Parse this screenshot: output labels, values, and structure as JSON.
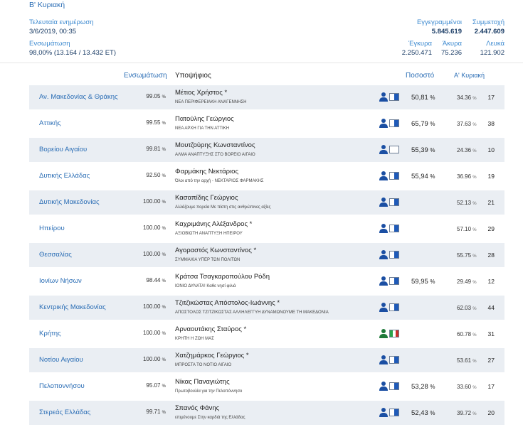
{
  "tab": "Β' Κυριακή",
  "header": {
    "last_update_label": "Τελευταία ενημέρωση",
    "last_update_value": "3/6/2019, 00:35",
    "integration_label": "Ενσωμάτωση",
    "integration_value": "98,00% (13.164 / 13.432 ΕΤ)",
    "registered_label": "Εγγεγραμμένοι",
    "registered_value": "5.845.619",
    "turnout_label": "Συμμετοχή",
    "turnout_value": "2.447.609",
    "valid_label": "Έγκυρα",
    "valid_value": "2.250.471",
    "invalid_label": "Άκυρα",
    "invalid_value": "75.236",
    "blank_label": "Λευκά",
    "blank_value": "121.902"
  },
  "columns": {
    "integration": "Ενσωμάτωση",
    "candidate": "Υποψήφιος",
    "percentage": "Ποσοστό",
    "first_sunday": "Α' Κυριακή"
  },
  "colors": {
    "accent": "#2a6db5",
    "row_bg": "#eaeef3",
    "flag_blue": "#1f5ab8"
  },
  "rows": [
    {
      "region": "Αν. Μακεδονίας & Θράκης",
      "pct": "99.05",
      "pct_unit": "%",
      "candidate": "Μέτιος Χρήστος *",
      "party": "ΝΕΑ ΠΕΡΙΦΕΡΕΙΑΚΗ ΑΝΑΓΕΝΝΗΣΗ",
      "icon": "person-blue-icon",
      "flag": "blue",
      "vote": "50,81",
      "vote_unit": "%",
      "first": "34.36",
      "first_unit": "%",
      "rank": "17"
    },
    {
      "region": "Αττικής",
      "pct": "99.55",
      "pct_unit": "%",
      "candidate": "Πατούλης Γεώργιος",
      "party": "ΝΕΑ ΑΡΧΗ ΓΙΑ ΤΗΝ ΑΤΤΙΚΗ",
      "icon": "person-blue-icon",
      "flag": "blue",
      "vote": "65,79",
      "vote_unit": "%",
      "first": "37.63",
      "first_unit": "%",
      "rank": "38"
    },
    {
      "region": "Βορείου Αιγαίου",
      "pct": "99.81",
      "pct_unit": "%",
      "candidate": "Μουτζούρης Κωνσταντίνος",
      "party": "ΑΛΜΑ ΑΝΑΠΤΥΞΗΣ ΣΤΟ ΒΟΡΕΙΟ ΑΙΓΑΙΟ",
      "icon": "person-blue-icon",
      "flag": "empty",
      "vote": "55,39",
      "vote_unit": "%",
      "first": "24.36",
      "first_unit": "%",
      "rank": "10"
    },
    {
      "region": "Δυτικής Ελλάδας",
      "pct": "92.50",
      "pct_unit": "%",
      "candidate": "Φαρμάκης Νεκτάριος",
      "party": "Όλοι από την αρχή - ΝΕΚΤΑΡΙΟΣ ΦΑΡΜΑΚΗΣ",
      "icon": "person-blue-icon",
      "flag": "blue",
      "vote": "55,94",
      "vote_unit": "%",
      "first": "36.96",
      "first_unit": "%",
      "rank": "19"
    },
    {
      "region": "Δυτικής Μακεδονίας",
      "pct": "100.00",
      "pct_unit": "%",
      "candidate": "Κασαπίδης Γεώργιος",
      "party": "Αλλάζουμε πορεία Με πίστη στις ανθρώπινες αξίες",
      "icon": "person-blue-icon",
      "flag": "blue",
      "vote": "",
      "vote_unit": "",
      "first": "52.13",
      "first_unit": "%",
      "rank": "21"
    },
    {
      "region": "Ηπείρου",
      "pct": "100.00",
      "pct_unit": "%",
      "candidate": "Καχριμάνης Αλέξανδρος *",
      "party": "ΑΞΙΟΒΙΩΤΗ ΑΝΑΠΤΥΞΗ ΗΠΕΙΡΟΥ",
      "icon": "person-blue-icon",
      "flag": "blue",
      "vote": "",
      "vote_unit": "",
      "first": "57.10",
      "first_unit": "%",
      "rank": "29"
    },
    {
      "region": "Θεσσαλίας",
      "pct": "100.00",
      "pct_unit": "%",
      "candidate": "Αγοραστός Κωνσταντίνος *",
      "party": "ΣΥΜΜΑΧΙΑ ΥΠΕΡ ΤΩΝ ΠΟΛΙΤΩΝ",
      "icon": "person-blue-icon",
      "flag": "blue",
      "vote": "",
      "vote_unit": "",
      "first": "55.75",
      "first_unit": "%",
      "rank": "28"
    },
    {
      "region": "Ιονίων Νήσων",
      "pct": "98.44",
      "pct_unit": "%",
      "candidate": "Κράτσα Τσαγκαροπούλου Ρόδη",
      "party": "ΙΟΝΙΟ ΔΥΝΑΤΑ! Καθε νησί φιλιά",
      "icon": "person-blue-icon",
      "flag": "blue",
      "vote": "59,95",
      "vote_unit": "%",
      "first": "29.49",
      "first_unit": "%",
      "rank": "12"
    },
    {
      "region": "Κεντρικής Μακεδονίας",
      "pct": "100.00",
      "pct_unit": "%",
      "candidate": "Τζιτζικώστας Απόστολος-Ιωάννης *",
      "party": "ΑΠΟΣΤΟΛΟΣ ΤΖΙΤΖΙΚΩΣΤΑΣ ΑΛΛΗΛΕΓΓΥΗ ΔΥΝΑΜΩΝΟΥΜΕ ΤΗ ΜΑΚΕΔΟΝΙΑ",
      "icon": "person-blue-icon",
      "flag": "blue",
      "vote": "",
      "vote_unit": "",
      "first": "62.03",
      "first_unit": "%",
      "rank": "44"
    },
    {
      "region": "Κρήτης",
      "pct": "100.00",
      "pct_unit": "%",
      "candidate": "Αρναουτάκης Σταύρος *",
      "party": "ΚΡΗΤΗ Η ΖΩΗ ΜΑΣ",
      "icon": "person-green-icon",
      "flag": "green",
      "vote": "",
      "vote_unit": "",
      "first": "60.78",
      "first_unit": "%",
      "rank": "31"
    },
    {
      "region": "Νοτίου Αιγαίου",
      "pct": "100.00",
      "pct_unit": "%",
      "candidate": "Χατζημάρκος Γεώργιος *",
      "party": "ΜΠΡΟΣΤΑ ΤΟ ΝΟΤΙΟ ΑΙΓΑΙΟ",
      "icon": "person-blue-icon",
      "flag": "blue",
      "vote": "",
      "vote_unit": "",
      "first": "53.61",
      "first_unit": "%",
      "rank": "27"
    },
    {
      "region": "Πελοποννήσου",
      "pct": "95.07",
      "pct_unit": "%",
      "candidate": "Νίκας Παναγιώτης",
      "party": "Πρωτοβουλία για την Πελοπόννησο",
      "icon": "person-blue-icon",
      "flag": "blue",
      "vote": "53,28",
      "vote_unit": "%",
      "first": "33.60",
      "first_unit": "%",
      "rank": "17"
    },
    {
      "region": "Στερεάς Ελλάδας",
      "pct": "99.71",
      "pct_unit": "%",
      "candidate": "Σπανός Φάνης",
      "party": "επιμένουμε Στην καρδιά της Ελλάδας",
      "icon": "person-blue-icon",
      "flag": "blue",
      "vote": "52,43",
      "vote_unit": "%",
      "first": "39.72",
      "first_unit": "%",
      "rank": "20"
    }
  ]
}
